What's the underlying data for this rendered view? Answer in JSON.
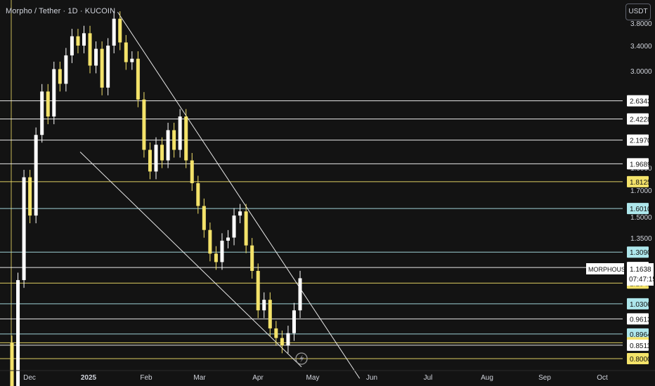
{
  "header": {
    "title": "Morpho / Tether · 1D · KUCOIN",
    "currency_button": "USDT"
  },
  "colors": {
    "background": "#131313",
    "up_candle": "#ffffff",
    "down_candle": "#f4e36a",
    "yellow_line": "#f4e36a",
    "cyan_line": "#aee7ec",
    "white_line": "#ffffff",
    "axis_text": "#d1d4dc"
  },
  "chart_data": {
    "type": "candlestick",
    "symbol": "MORPHOUSDT",
    "exchange": "KUCOIN",
    "interval": "1D",
    "scale": "log",
    "y_axis_ticks": [
      "3.8000",
      "3.4000",
      "3.0000",
      "1.9000",
      "1.7000",
      "1.5000",
      "1.3500"
    ],
    "x_axis_ticks": [
      "Dec",
      "2025",
      "Feb",
      "Mar",
      "Apr",
      "May",
      "Jun",
      "Jul",
      "Aug",
      "Sep",
      "Oct"
    ],
    "price_levels": [
      {
        "value": 2.6343,
        "label": "2.6343",
        "color": "white"
      },
      {
        "value": 2.4228,
        "label": "2.4228",
        "color": "white"
      },
      {
        "value": 2.197,
        "label": "2.1970",
        "color": "white"
      },
      {
        "value": 1.9689,
        "label": "1.9689",
        "color": "white"
      },
      {
        "value": 1.8125,
        "label": "1.8125",
        "color": "yellow"
      },
      {
        "value": 1.601,
        "label": "1.6010",
        "color": "cyan"
      },
      {
        "value": 1.309,
        "label": "1.3090",
        "color": "cyan"
      },
      {
        "value": 1.2191,
        "label": "1.2191",
        "color": "white"
      },
      {
        "value": 1.1342,
        "label": "1.1342",
        "color": "yellow"
      },
      {
        "value": 1.0306,
        "label": "1.0306",
        "color": "cyan"
      },
      {
        "value": 0.9613,
        "label": "0.9613",
        "color": "white"
      },
      {
        "value": 0.8964,
        "label": "0.8964",
        "color": "cyan"
      },
      {
        "value": 0.8609,
        "label": "0.8609",
        "color": "yellow"
      },
      {
        "value": 0.8511,
        "label": "0.8511",
        "color": "white"
      },
      {
        "value": 0.8,
        "label": "0.8000",
        "color": "yellow"
      }
    ],
    "current_price": {
      "label": "MORPHOUSDT",
      "value": "1.1638",
      "countdown": "07:47:15"
    },
    "trendlines": [
      {
        "from": {
          "date": "2025-01-17",
          "price": 3.97
        },
        "to": {
          "date": "2025-05-26",
          "price": 0.73
        }
      },
      {
        "from": {
          "date": "2024-12-28",
          "price": 2.08
        },
        "to": {
          "date": "2025-04-25",
          "price": 0.77
        }
      }
    ],
    "candles_approx": [
      [
        0.86,
        0.7
      ],
      [
        0.7,
        1.15
      ],
      [
        1.15,
        1.85
      ],
      [
        1.85,
        1.55
      ],
      [
        1.55,
        2.25
      ],
      [
        2.25,
        2.75
      ],
      [
        2.75,
        2.45
      ],
      [
        2.45,
        3.05
      ],
      [
        3.05,
        2.85
      ],
      [
        2.85,
        3.25
      ],
      [
        3.25,
        3.55
      ],
      [
        3.55,
        3.4
      ],
      [
        3.4,
        3.6
      ],
      [
        3.6,
        3.1
      ],
      [
        3.1,
        3.35
      ],
      [
        3.35,
        2.8
      ],
      [
        2.8,
        3.4
      ],
      [
        3.4,
        3.85
      ],
      [
        3.85,
        3.45
      ],
      [
        3.45,
        3.15
      ],
      [
        3.15,
        3.2
      ],
      [
        3.2,
        2.65
      ],
      [
        2.65,
        2.1
      ],
      [
        2.1,
        1.9
      ],
      [
        1.9,
        2.15
      ],
      [
        2.15,
        2.0
      ],
      [
        2.0,
        2.3
      ],
      [
        2.3,
        2.1
      ],
      [
        2.1,
        2.45
      ],
      [
        2.45,
        2.0
      ],
      [
        2.0,
        1.8
      ],
      [
        1.8,
        1.62
      ],
      [
        1.62,
        1.45
      ],
      [
        1.45,
        1.3
      ],
      [
        1.3,
        1.25
      ],
      [
        1.25,
        1.38
      ],
      [
        1.38,
        1.4
      ],
      [
        1.4,
        1.55
      ],
      [
        1.55,
        1.58
      ],
      [
        1.58,
        1.35
      ],
      [
        1.35,
        1.2
      ],
      [
        1.2,
        1.0
      ],
      [
        1.0,
        1.05
      ],
      [
        1.05,
        0.92
      ],
      [
        0.92,
        0.88
      ],
      [
        0.88,
        0.85
      ],
      [
        0.85,
        0.9
      ],
      [
        0.9,
        1.0
      ],
      [
        1.0,
        1.16
      ]
    ]
  }
}
